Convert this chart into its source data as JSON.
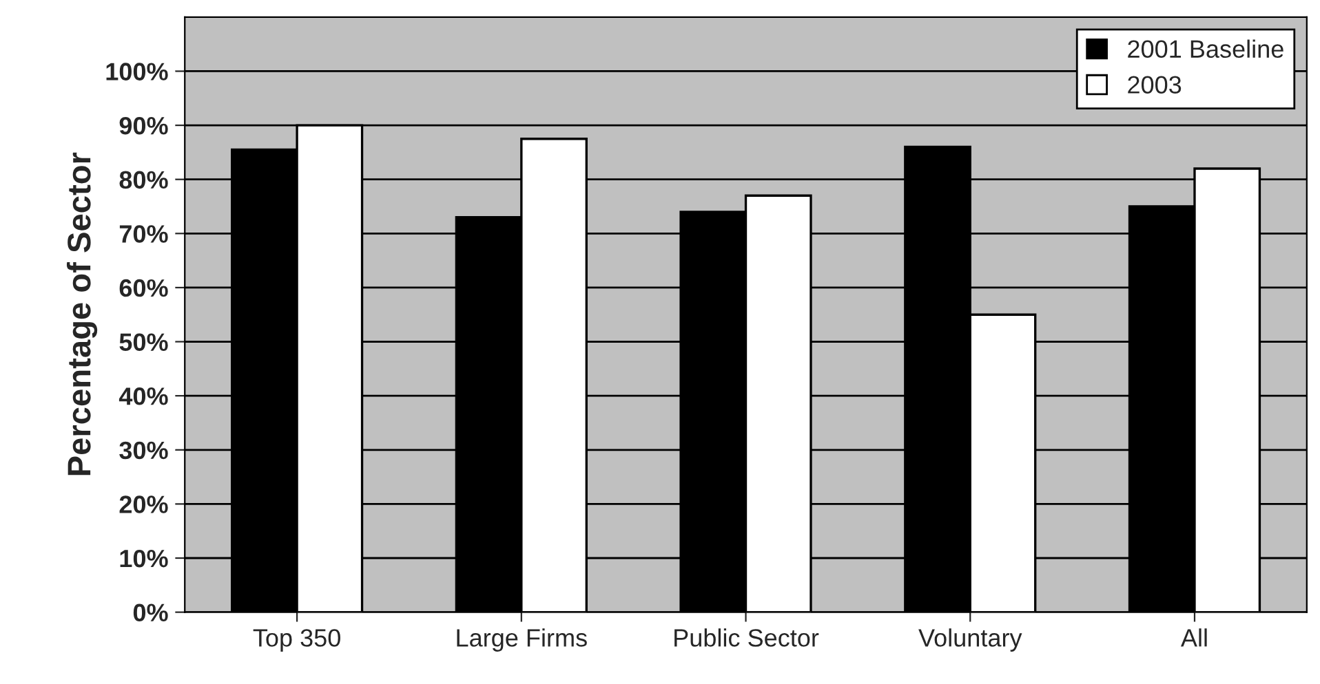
{
  "chart_data": {
    "type": "bar",
    "ylabel": "Percentage of Sector",
    "categories": [
      "Top 350",
      "Large Firms",
      "Public Sector",
      "Voluntary",
      "All"
    ],
    "series": [
      {
        "name": "2001 Baseline",
        "color": "#000000",
        "values": [
          85.5,
          73,
          74,
          86,
          75
        ]
      },
      {
        "name": "2003",
        "color": "#ffffff",
        "values": [
          90,
          87.5,
          77,
          55,
          82
        ]
      }
    ],
    "ylim": [
      0,
      110
    ],
    "yticks": [
      {
        "value": 0,
        "label": "0%"
      },
      {
        "value": 10,
        "label": "10%"
      },
      {
        "value": 20,
        "label": "20%"
      },
      {
        "value": 30,
        "label": "30%"
      },
      {
        "value": 40,
        "label": "40%"
      },
      {
        "value": 50,
        "label": "50%"
      },
      {
        "value": 60,
        "label": "60%"
      },
      {
        "value": 70,
        "label": "70%"
      },
      {
        "value": 80,
        "label": "80%"
      },
      {
        "value": 90,
        "label": "90%"
      },
      {
        "value": 100,
        "label": "100%"
      }
    ],
    "grid": "y",
    "legend": "top right"
  }
}
